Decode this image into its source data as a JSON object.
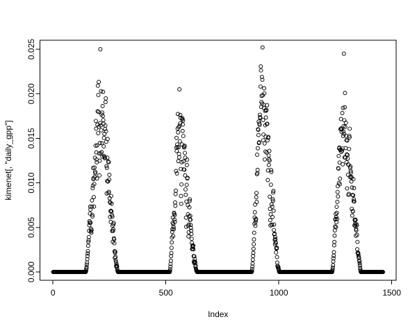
{
  "chart_data": {
    "type": "scatter",
    "title": "",
    "xlabel": "Index",
    "ylabel": "kimenet[, \"daily_gpp\"]",
    "marker": "open-circle",
    "point_color": "#000000",
    "background_color": "#ffffff",
    "grid": false,
    "legend": null,
    "n_points": 1461,
    "xlim": [
      -57.4,
      1519.4
    ],
    "ylim": [
      -0.00093,
      0.02601
    ],
    "x_ticks": {
      "values": [
        0,
        500,
        1000,
        1500
      ],
      "labels": [
        "0",
        "500",
        "1000",
        "1500"
      ]
    },
    "y_ticks": {
      "values": [
        0,
        0.005,
        0.01,
        0.015,
        0.02,
        0.025
      ],
      "labels": [
        "0.000",
        "0.005",
        "0.010",
        "0.015",
        "0.020",
        "0.025"
      ]
    },
    "series": [
      {
        "name": "daily_gpp",
        "pattern": "daily GPP over four years: long runs of exact zeros in dormant season, steep tight spring rise, scattered summer peak and autumn decline",
        "baseline_value": 0,
        "seasons": [
          {
            "start": 145,
            "peak": 210,
            "end": 288,
            "max": 0.025
          },
          {
            "start": 517,
            "peak": 560,
            "end": 638,
            "max": 0.0205
          },
          {
            "start": 880,
            "peak": 928,
            "end": 1002,
            "max": 0.0252
          },
          {
            "start": 1236,
            "peak": 1288,
            "end": 1363,
            "max": 0.0245
          }
        ],
        "zero_segments": [
          [
            1,
            144
          ],
          [
            289,
            516
          ],
          [
            639,
            879
          ],
          [
            1003,
            1235
          ],
          [
            1364,
            1461
          ]
        ],
        "noise": {
          "seed": 42,
          "smoothing": 0.45,
          "tight_rel_threshold": 0.32,
          "tight_base": 0.88,
          "tight_span": 0.18,
          "rise_base": 0.3,
          "rise_span": 0.78,
          "fall_base": 0.18,
          "fall_span": 0.88,
          "rise_exponent": 1.6,
          "fall_exponent": 1.4
        }
      }
    ]
  }
}
